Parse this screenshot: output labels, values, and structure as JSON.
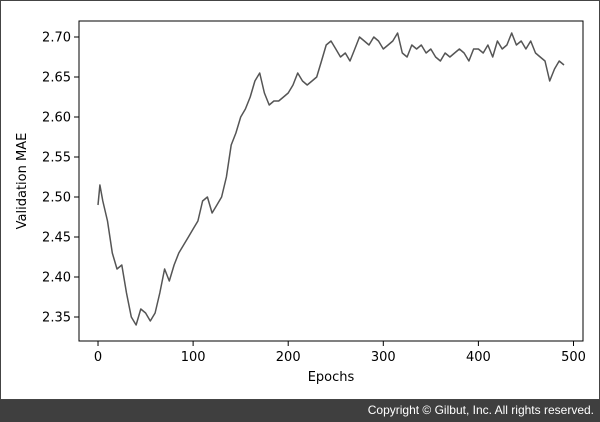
{
  "chart_data": {
    "type": "line",
    "title": "",
    "xlabel": "Epochs",
    "ylabel": "Validation MAE",
    "xlim": [
      -20,
      510
    ],
    "ylim": [
      2.32,
      2.72
    ],
    "xticks": [
      "0",
      "100",
      "200",
      "300",
      "400",
      "500"
    ],
    "yticks": [
      "2.35",
      "2.40",
      "2.45",
      "2.50",
      "2.55",
      "2.60",
      "2.65",
      "2.70"
    ],
    "grid": false,
    "legend": "none",
    "line_color": "#555555",
    "series": [
      {
        "x": [
          0,
          2,
          5,
          10,
          15,
          20,
          25,
          30,
          35,
          40,
          45,
          50,
          55,
          60,
          65,
          70,
          75,
          80,
          85,
          90,
          95,
          100,
          105,
          110,
          115,
          120,
          125,
          130,
          135,
          140,
          145,
          150,
          155,
          160,
          165,
          170,
          175,
          180,
          185,
          190,
          195,
          200,
          205,
          210,
          215,
          220,
          225,
          230,
          235,
          240,
          245,
          250,
          255,
          260,
          265,
          270,
          275,
          280,
          285,
          290,
          295,
          300,
          305,
          310,
          315,
          320,
          325,
          330,
          335,
          340,
          345,
          350,
          355,
          360,
          365,
          370,
          375,
          380,
          385,
          390,
          395,
          400,
          405,
          410,
          415,
          420,
          425,
          430,
          435,
          440,
          445,
          450,
          455,
          460,
          465,
          470,
          475,
          480,
          485,
          490
        ],
        "y": [
          2.49,
          2.515,
          2.495,
          2.47,
          2.43,
          2.41,
          2.415,
          2.38,
          2.35,
          2.34,
          2.36,
          2.355,
          2.345,
          2.355,
          2.38,
          2.41,
          2.395,
          2.415,
          2.43,
          2.44,
          2.45,
          2.46,
          2.47,
          2.495,
          2.5,
          2.48,
          2.49,
          2.5,
          2.525,
          2.565,
          2.58,
          2.6,
          2.61,
          2.625,
          2.645,
          2.655,
          2.63,
          2.615,
          2.62,
          2.62,
          2.625,
          2.63,
          2.64,
          2.655,
          2.645,
          2.64,
          2.645,
          2.65,
          2.67,
          2.69,
          2.695,
          2.685,
          2.675,
          2.68,
          2.67,
          2.685,
          2.7,
          2.695,
          2.69,
          2.7,
          2.695,
          2.685,
          2.69,
          2.695,
          2.705,
          2.68,
          2.675,
          2.69,
          2.685,
          2.69,
          2.68,
          2.685,
          2.675,
          2.67,
          2.68,
          2.675,
          2.68,
          2.685,
          2.68,
          2.67,
          2.685,
          2.685,
          2.68,
          2.69,
          2.675,
          2.695,
          2.685,
          2.69,
          2.705,
          2.69,
          2.695,
          2.685,
          2.695,
          2.68,
          2.675,
          2.67,
          2.645,
          2.66,
          2.67,
          2.665
        ]
      }
    ]
  },
  "footer": {
    "copyright": "Copyright © Gilbut, Inc. All rights reserved."
  }
}
